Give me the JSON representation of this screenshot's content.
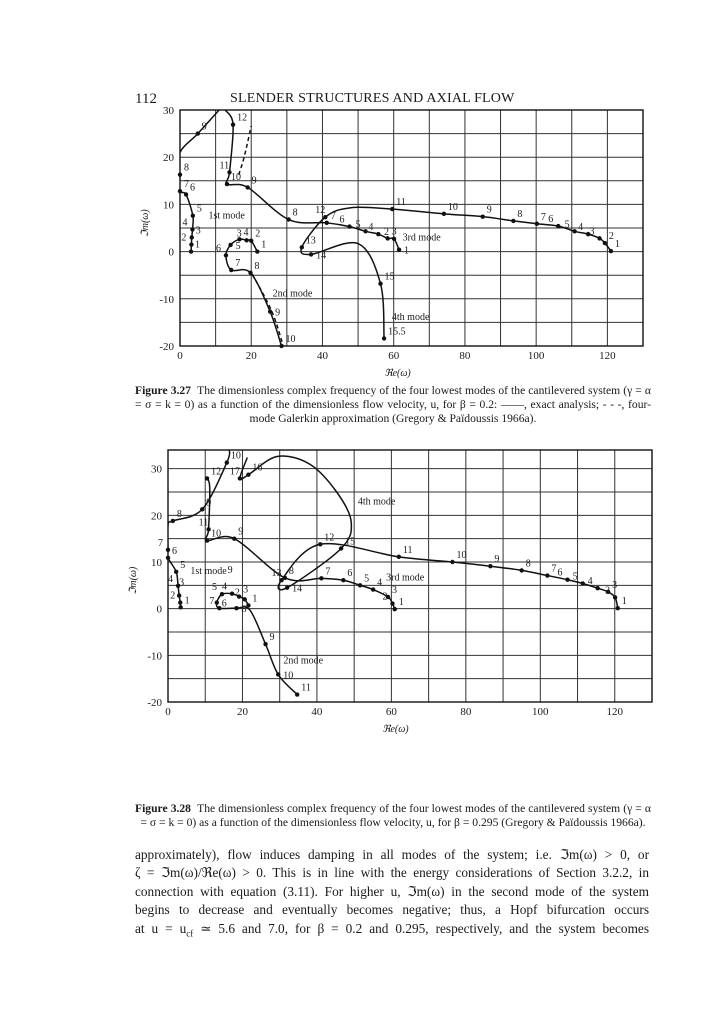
{
  "header": {
    "page_number": "112",
    "running_title": "SLENDER STRUCTURES AND AXIAL FLOW"
  },
  "chart_data": [
    {
      "type": "line",
      "figure": "Figure 3.27",
      "xlabel": "ℜe(ω)",
      "ylabel": "ℑm(ω)",
      "xlim": [
        0,
        130
      ],
      "ylim": [
        -20,
        30
      ],
      "xticks": [
        0,
        20,
        40,
        60,
        80,
        100,
        120
      ],
      "yticks": [
        -20,
        -10,
        0,
        10,
        20,
        30
      ],
      "grid": {
        "on": true,
        "x_step": 10,
        "y_step": 5
      },
      "point_labels_note_visible": false,
      "series": [
        {
          "style": "solid",
          "points": [
            [
              3.1,
              0,
              "1"
            ],
            [
              3.2,
              1.5,
              "2"
            ],
            [
              3.3,
              3,
              "3"
            ],
            [
              3.5,
              4.7,
              "4"
            ],
            [
              3.6,
              7.6,
              "5"
            ],
            [
              1.7,
              12.1,
              "6"
            ],
            [
              0,
              12.8,
              "7"
            ],
            [
              0,
              16.3,
              "8"
            ],
            [
              0,
              21,
              null
            ],
            [
              5,
              25,
              "9"
            ],
            [
              11,
              30,
              null
            ]
          ]
        },
        {
          "style": "solid",
          "points": [
            [
              21.7,
              0,
              "1"
            ],
            [
              20,
              2.3,
              "2"
            ],
            [
              18.7,
              2.4,
              "3"
            ],
            [
              16.7,
              2.6,
              "4"
            ],
            [
              14.2,
              1.4,
              "5"
            ],
            [
              12.9,
              -0.8,
              "6"
            ],
            [
              14.4,
              -3.9,
              "7"
            ],
            [
              19.8,
              -4.5,
              "8"
            ],
            [
              25.3,
              -12.7,
              "9"
            ],
            [
              28.5,
              -20,
              "10"
            ]
          ]
        },
        {
          "style": "solid",
          "points": [
            [
              61.5,
              0.4,
              "1"
            ],
            [
              60.1,
              2.7,
              "2"
            ],
            [
              58.3,
              2.8,
              "3"
            ],
            [
              55.7,
              3.7,
              "4"
            ],
            [
              52.1,
              4.3,
              "5"
            ],
            [
              47.6,
              5.3,
              "6"
            ],
            [
              41.2,
              6.1,
              "7"
            ],
            [
              30.5,
              6.8,
              "8"
            ],
            [
              19,
              13.6,
              "9"
            ],
            [
              13.2,
              14.3,
              "10"
            ],
            [
              13.9,
              16.8,
              "11"
            ],
            [
              14.9,
              26.9,
              "12"
            ],
            [
              12.7,
              30,
              null
            ]
          ]
        },
        {
          "style": "solid",
          "points": [
            [
              121,
              0.1,
              "1"
            ],
            [
              119.3,
              1.8,
              "2"
            ],
            [
              117.8,
              2.8,
              "3"
            ],
            [
              114.6,
              3.7,
              "4"
            ],
            [
              110.8,
              4.3,
              "5"
            ],
            [
              106.2,
              5.4,
              "6"
            ],
            [
              100.2,
              5.9,
              "7"
            ],
            [
              93.6,
              6.5,
              "8"
            ],
            [
              85,
              7.4,
              "9"
            ],
            [
              74.1,
              8,
              "10"
            ],
            [
              59.6,
              9,
              "11"
            ],
            [
              48,
              9.3,
              null
            ],
            [
              40.8,
              7.3,
              "12"
            ],
            [
              34.2,
              0.9,
              "13"
            ],
            [
              36.8,
              -0.6,
              "14"
            ],
            [
              50,
              1.7,
              null
            ],
            [
              56.3,
              -6.8,
              "15"
            ],
            [
              57.3,
              -18.4,
              "15.5"
            ]
          ]
        },
        {
          "style": "dashed",
          "points": [
            [
              16.5,
              16.3,
              null
            ],
            [
              18,
              20,
              null
            ],
            [
              20,
              26.6,
              null
            ]
          ]
        },
        {
          "style": "dashed",
          "points": [
            [
              20.3,
              -4.8,
              null
            ],
            [
              25.8,
              -12.7,
              null
            ],
            [
              29,
              -20,
              null
            ]
          ]
        }
      ],
      "annotations": [
        {
          "text": "1st mode",
          "x": 8,
          "y": 7
        },
        {
          "text": "2nd mode",
          "x": 26,
          "y": -9.5
        },
        {
          "text": "3rd mode",
          "x": 62.5,
          "y": 2.3
        },
        {
          "text": "4th mode",
          "x": 59.5,
          "y": -14.5
        }
      ]
    },
    {
      "type": "line",
      "figure": "Figure 3.28",
      "xlabel": "ℜe(ω)",
      "ylabel": "ℑm(ω)",
      "xlim": [
        0,
        130
      ],
      "ylim": [
        -20,
        34
      ],
      "xticks": [
        0,
        20,
        40,
        60,
        80,
        100,
        120
      ],
      "yticks": [
        -20,
        -10,
        0,
        10,
        20,
        30
      ],
      "grid": {
        "on": true,
        "x_step": 10,
        "y_step": 5
      },
      "series": [
        {
          "style": "solid",
          "points": [
            [
              3.4,
              0.3,
              "1"
            ],
            [
              3.3,
              1.3,
              "2"
            ],
            [
              3.0,
              2.8,
              "3"
            ],
            [
              2.7,
              4.9,
              "4"
            ],
            [
              2.2,
              7.9,
              "5"
            ],
            [
              0,
              10.9,
              "6"
            ],
            [
              0,
              12.6,
              "7"
            ],
            [
              0,
              18,
              null
            ],
            [
              1.3,
              18.8,
              "8"
            ],
            [
              9.2,
              21.3,
              "9"
            ],
            [
              15.8,
              31.3,
              "10"
            ],
            [
              16.5,
              34,
              null
            ]
          ]
        },
        {
          "style": "solid",
          "points": [
            [
              21.6,
              0.7,
              "1"
            ],
            [
              20.6,
              2,
              "2"
            ],
            [
              19.1,
              2.6,
              "3"
            ],
            [
              17.2,
              3.2,
              "4"
            ],
            [
              14.5,
              3.1,
              "5"
            ],
            [
              13.1,
              1.3,
              "6"
            ],
            [
              13.8,
              0.1,
              "7"
            ],
            [
              18.4,
              0.1,
              "8"
            ],
            [
              22,
              -0.3,
              null
            ],
            [
              26.2,
              -7.6,
              "9"
            ],
            [
              29.6,
              -14.1,
              "10"
            ],
            [
              34.7,
              -18.4,
              "11"
            ]
          ]
        },
        {
          "style": "solid",
          "points": [
            [
              60.9,
              -0.1,
              "1"
            ],
            [
              60.3,
              1.1,
              "2"
            ],
            [
              59.1,
              2.5,
              "3"
            ],
            [
              55.1,
              4.1,
              "4"
            ],
            [
              51.6,
              5,
              "5"
            ],
            [
              47.1,
              6.1,
              "6"
            ],
            [
              41.2,
              6.5,
              "7"
            ],
            [
              31.4,
              6.6,
              "8"
            ],
            [
              17.8,
              15,
              "9"
            ],
            [
              10.5,
              14.6,
              "10"
            ],
            [
              10.9,
              17,
              "11"
            ],
            [
              11.2,
              26,
              null
            ],
            [
              10.5,
              27.9,
              "12"
            ]
          ]
        },
        {
          "style": "solid",
          "points": [
            [
              120.8,
              0.1,
              "1"
            ],
            [
              120.1,
              2.4,
              "2"
            ],
            [
              118.2,
              3.6,
              "3"
            ],
            [
              115.4,
              4.4,
              "4"
            ],
            [
              111.4,
              5.4,
              "5"
            ],
            [
              107.3,
              6.2,
              "6"
            ],
            [
              101.9,
              7.1,
              "7"
            ],
            [
              95,
              8.2,
              "8"
            ],
            [
              86.6,
              9.1,
              "9"
            ],
            [
              76.4,
              10,
              "10"
            ],
            [
              62,
              11.1,
              "11"
            ],
            [
              40.9,
              13.8,
              "12"
            ],
            [
              30.5,
              6.1,
              "13"
            ],
            [
              32,
              4.5,
              "14"
            ],
            [
              46.5,
              12.9,
              "15"
            ],
            [
              49.2,
              18.6,
              null
            ],
            [
              45.3,
              25,
              null
            ],
            [
              38,
              31,
              null
            ],
            [
              29.3,
              32.6,
              null
            ],
            [
              21.6,
              28.7,
              "16"
            ],
            [
              19.3,
              27.9,
              "17"
            ],
            [
              21.3,
              32.4,
              null
            ]
          ]
        }
      ],
      "annotations": [
        {
          "text": "1st mode",
          "x": 6,
          "y": 7.4
        },
        {
          "text": "9",
          "x": 16,
          "y": 7.6
        },
        {
          "text": "2nd mode",
          "x": 31,
          "y": -11.8
        },
        {
          "text": "3rd mode",
          "x": 58.6,
          "y": 6
        },
        {
          "text": "4th mode",
          "x": 51,
          "y": 22.3
        }
      ]
    }
  ],
  "captions": [
    {
      "label": "Figure 3.27",
      "text": "The dimensionless complex frequency of the four lowest modes of the cantilevered system (γ = α = σ = k = 0) as a function of the dimensionless flow velocity, u, for β = 0.2: ——, exact analysis; - - -, four-mode Galerkin approximation (Gregory & Païdoussis 1966a)."
    },
    {
      "label": "Figure 3.28",
      "text": "The dimensionless complex frequency of the four lowest modes of the cantilevered system (γ = α = σ = k = 0) as a function of the dimensionless flow velocity, u, for β = 0.295 (Gregory & Païdoussis 1966a)."
    }
  ],
  "body": {
    "lines": [
      "approximately), flow induces damping in all modes of the system; i.e. ℑm(ω) > 0, or",
      "ζ = ℑm(ω)/ℜe(ω) > 0. This is in line with the energy considerations of Section 3.2.2, in",
      "connection with equation (3.11). For higher u, ℑm(ω) in the second mode of the system",
      "begins to decrease and eventually becomes negative; thus, a Hopf bifurcation occurs"
    ],
    "last_line_a": "at u = u",
    "last_line_sub": "cf",
    "last_line_b": " ≃ 5.6 and 7.0, for β = 0.2 and 0.295, respectively, and the system becomes"
  }
}
